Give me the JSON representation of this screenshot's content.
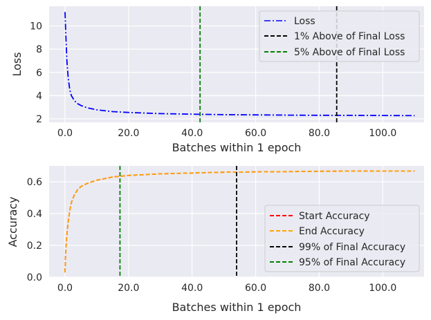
{
  "chart_data": [
    {
      "type": "line",
      "xlabel": "Batches within 1 epoch",
      "ylabel": "Loss",
      "xlim": [
        -5,
        113
      ],
      "ylim": [
        1.7,
        11.7
      ],
      "xticks": [
        0,
        20,
        40,
        60,
        80,
        100
      ],
      "xtick_labels": [
        "0.0",
        "20.0",
        "40.0",
        "60.0",
        "80.0",
        "100.0"
      ],
      "yticks": [
        2,
        4,
        6,
        8,
        10
      ],
      "ytick_labels": [
        "2",
        "4",
        "6",
        "8",
        "10"
      ],
      "grid": true,
      "legend_position": "top-right",
      "series": [
        {
          "name": "Loss",
          "color": "#0000ff",
          "style": "dashdot",
          "x": [
            0,
            0.3,
            0.6,
            1,
            1.5,
            2,
            3,
            4,
            5,
            7,
            10,
            15,
            20,
            30,
            40,
            50,
            60,
            70,
            80,
            90,
            100,
            110
          ],
          "y": [
            11.2,
            9.0,
            7.0,
            5.5,
            4.5,
            4.0,
            3.55,
            3.3,
            3.15,
            2.95,
            2.78,
            2.62,
            2.55,
            2.45,
            2.4,
            2.36,
            2.34,
            2.32,
            2.31,
            2.3,
            2.29,
            2.28
          ]
        }
      ],
      "vlines": [
        {
          "name": "1% Above of Final Loss",
          "x": 85.5,
          "color": "#000000",
          "style": "dashed"
        },
        {
          "name": "5% Above of Final Loss",
          "x": 42.5,
          "color": "#008000",
          "style": "dashed"
        }
      ]
    },
    {
      "type": "line",
      "xlabel": "Batches within 1 epoch",
      "ylabel": "Accuracy",
      "xlim": [
        -5,
        113
      ],
      "ylim": [
        0,
        0.7
      ],
      "xticks": [
        0,
        20,
        40,
        60,
        80,
        100
      ],
      "xtick_labels": [
        "0.0",
        "20.0",
        "40.0",
        "60.0",
        "80.0",
        "100.0"
      ],
      "yticks": [
        0,
        0.2,
        0.4,
        0.6
      ],
      "ytick_labels": [
        "0.0",
        "0.2",
        "0.4",
        "0.6"
      ],
      "grid": true,
      "legend_position": "lower-right",
      "series": [
        {
          "name": "Start Accuracy",
          "color": "#ff0000",
          "style": "dashed",
          "x": [
            0,
            0.2,
            0.5,
            1,
            1.5,
            2,
            3,
            4,
            5,
            7,
            10,
            15,
            20,
            30,
            40,
            50,
            60,
            70,
            80,
            90,
            100,
            110
          ],
          "y": [
            0.03,
            0.15,
            0.25,
            0.35,
            0.42,
            0.47,
            0.52,
            0.55,
            0.57,
            0.59,
            0.61,
            0.63,
            0.64,
            0.65,
            0.655,
            0.66,
            0.662,
            0.664,
            0.666,
            0.667,
            0.668,
            0.668
          ]
        },
        {
          "name": "End Accuracy",
          "color": "#ffa500",
          "style": "dashed",
          "x": [
            0,
            0.2,
            0.5,
            1,
            1.5,
            2,
            3,
            4,
            5,
            7,
            10,
            15,
            20,
            30,
            40,
            50,
            60,
            70,
            80,
            90,
            100,
            110
          ],
          "y": [
            0.03,
            0.15,
            0.25,
            0.35,
            0.42,
            0.47,
            0.52,
            0.55,
            0.57,
            0.59,
            0.61,
            0.63,
            0.64,
            0.65,
            0.655,
            0.66,
            0.662,
            0.664,
            0.666,
            0.667,
            0.668,
            0.668
          ]
        }
      ],
      "vlines": [
        {
          "name": "99% of Final Accuracy",
          "x": 54,
          "color": "#000000",
          "style": "dashed"
        },
        {
          "name": "95% of Final Accuracy",
          "x": 17.3,
          "color": "#008000",
          "style": "dashed"
        }
      ]
    }
  ]
}
